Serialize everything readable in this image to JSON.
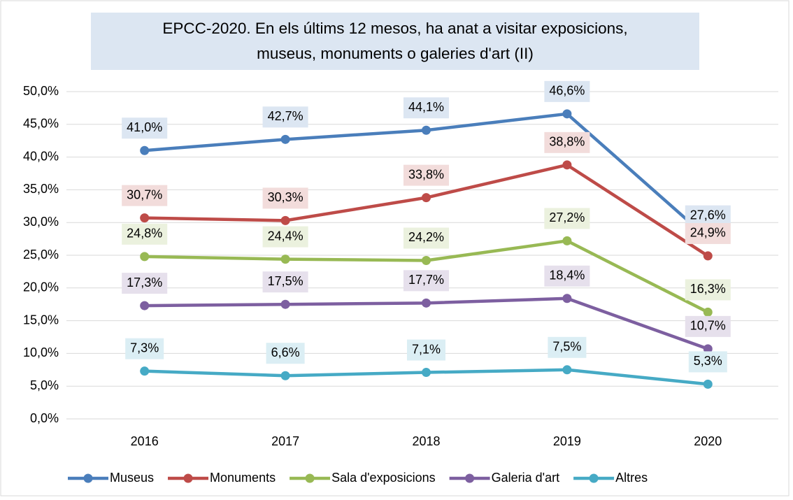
{
  "chart_data": {
    "type": "line",
    "title": "EPCC-2020. En els últims 12 mesos, ha anat a visitar exposicions, museus, monuments o galeries d'art (II)",
    "categories": [
      "2016",
      "2017",
      "2018",
      "2019",
      "2020"
    ],
    "series": [
      {
        "name": "Museus",
        "color": "#4a7ebb",
        "label_bg": "#dce6f2",
        "values": [
          41.0,
          42.7,
          44.1,
          46.6,
          27.6
        ],
        "value_labels": [
          "41,0%",
          "42,7%",
          "44,1%",
          "46,6%",
          "27,6%"
        ]
      },
      {
        "name": "Monuments",
        "color": "#be4b48",
        "label_bg": "#f2dcdb",
        "values": [
          30.7,
          30.3,
          33.8,
          38.8,
          24.9
        ],
        "value_labels": [
          "30,7%",
          "30,3%",
          "33,8%",
          "38,8%",
          "24,9%"
        ]
      },
      {
        "name": "Sala d'exposicions",
        "color": "#98b954",
        "label_bg": "#ebf1de",
        "values": [
          24.8,
          24.4,
          24.2,
          27.2,
          16.3
        ],
        "value_labels": [
          "24,8%",
          "24,4%",
          "24,2%",
          "27,2%",
          "16,3%"
        ]
      },
      {
        "name": "Galeria d'art",
        "color": "#7d5fa0",
        "label_bg": "#e6e0ec",
        "values": [
          17.3,
          17.5,
          17.7,
          18.4,
          10.7
        ],
        "value_labels": [
          "17,3%",
          "17,5%",
          "17,7%",
          "18,4%",
          "10,7%"
        ]
      },
      {
        "name": "Altres",
        "color": "#46aac5",
        "label_bg": "#dbeef4",
        "values": [
          7.3,
          6.6,
          7.1,
          7.5,
          5.3
        ],
        "value_labels": [
          "7,3%",
          "6,6%",
          "7,1%",
          "7,5%",
          "5,3%"
        ]
      }
    ],
    "ylim": [
      0,
      50
    ],
    "yticks": [
      {
        "value": 0,
        "label": "0,0%"
      },
      {
        "value": 5,
        "label": "5,0%"
      },
      {
        "value": 10,
        "label": "10,0%"
      },
      {
        "value": 15,
        "label": "15,0%"
      },
      {
        "value": 20,
        "label": "20,0%"
      },
      {
        "value": 25,
        "label": "25,0%"
      },
      {
        "value": 30,
        "label": "30,0%"
      },
      {
        "value": 35,
        "label": "35,0%"
      },
      {
        "value": 40,
        "label": "40,0%"
      },
      {
        "value": 45,
        "label": "45,0%"
      },
      {
        "value": 50,
        "label": "50,0%"
      }
    ],
    "grid": true,
    "legend": "bottom"
  }
}
